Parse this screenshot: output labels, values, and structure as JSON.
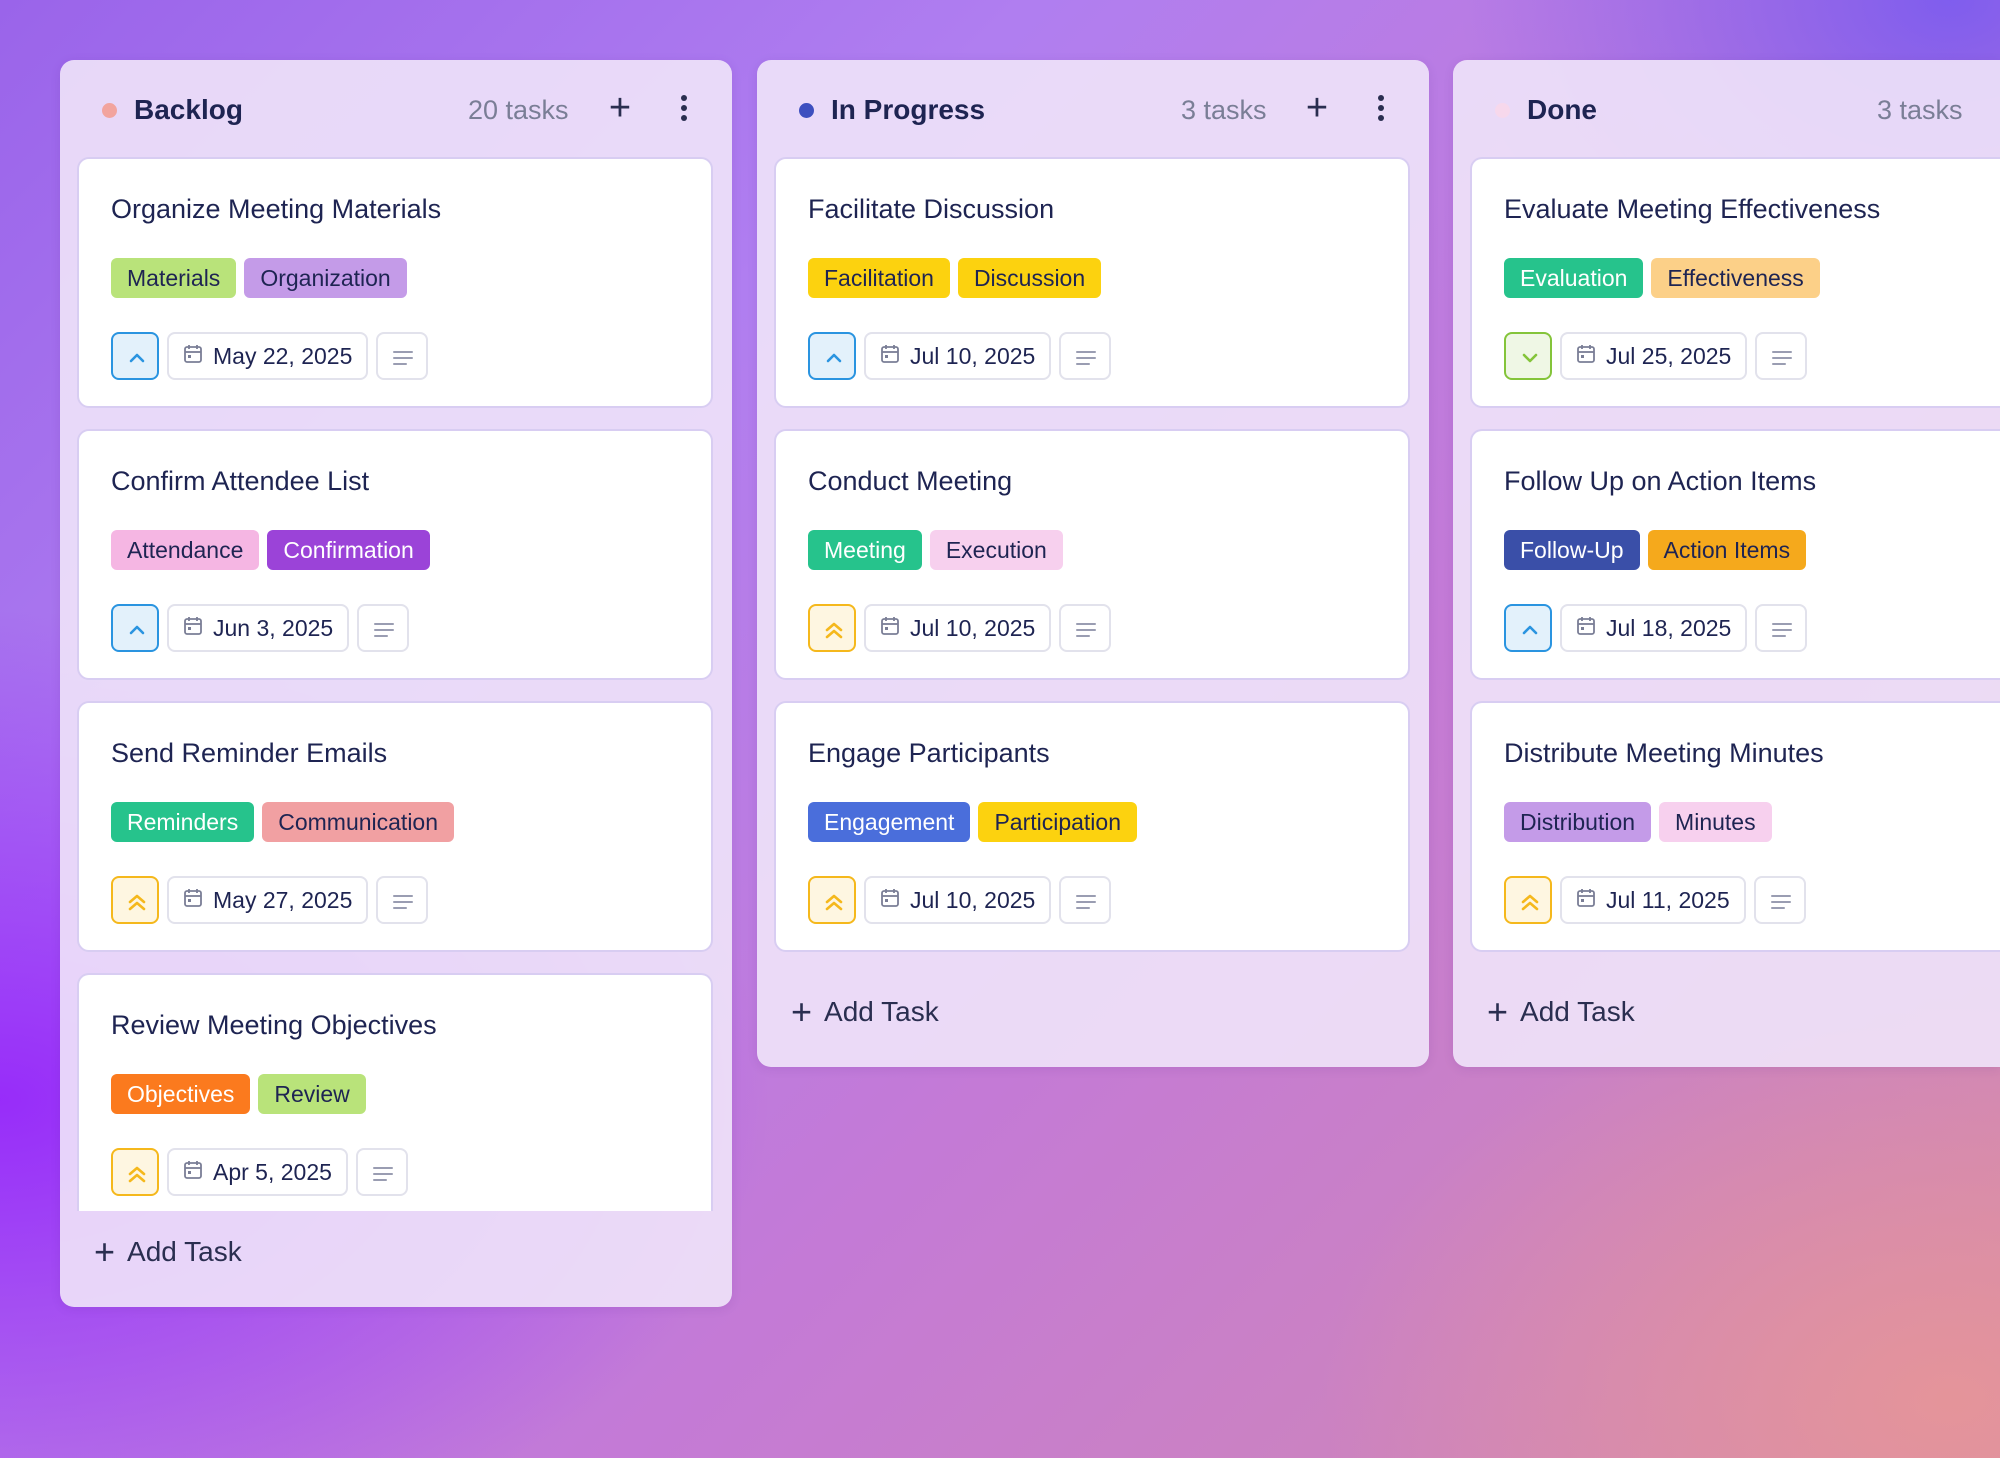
{
  "colors": {
    "priority_high": "#f5b81c",
    "priority_medium": "#2a94e0",
    "priority_low": "#84c43a"
  },
  "columns": [
    {
      "title": "Backlog",
      "count": "20 tasks",
      "dot_color": "#f2a49e",
      "add_task": "Add Task",
      "cards": [
        {
          "title": "Organize Meeting Materials",
          "priority": "medium",
          "tags": [
            {
              "label": "Materials",
              "bg": "#b9e37a",
              "fg": "#1e2452"
            },
            {
              "label": "Organization",
              "bg": "#c49be8",
              "fg": "#1e2452"
            }
          ],
          "date": "May 22, 2025"
        },
        {
          "title": "Confirm Attendee List",
          "priority": "medium",
          "tags": [
            {
              "label": "Attendance",
              "bg": "#f5b6e3",
              "fg": "#1e2452"
            },
            {
              "label": "Confirmation",
              "bg": "#9b43d8",
              "fg": "#ffffff"
            }
          ],
          "date": "Jun 3, 2025"
        },
        {
          "title": "Send Reminder Emails",
          "priority": "high",
          "tags": [
            {
              "label": "Reminders",
              "bg": "#26c38c",
              "fg": "#ffffff"
            },
            {
              "label": "Communication",
              "bg": "#f1a0a2",
              "fg": "#1e2452"
            }
          ],
          "date": "May 27, 2025"
        },
        {
          "title": "Review Meeting Objectives",
          "priority": "high",
          "tags": [
            {
              "label": "Objectives",
              "bg": "#fb7a1e",
              "fg": "#ffffff"
            },
            {
              "label": "Review",
              "bg": "#b9e37a",
              "fg": "#1e2452"
            }
          ],
          "date": "Apr 5, 2025"
        }
      ]
    },
    {
      "title": "In Progress",
      "count": "3 tasks",
      "dot_color": "#3d4fbf",
      "add_task": "Add Task",
      "cards": [
        {
          "title": "Facilitate Discussion",
          "priority": "medium",
          "tags": [
            {
              "label": "Facilitation",
              "bg": "#fcd20f",
              "fg": "#1e2452"
            },
            {
              "label": "Discussion",
              "bg": "#fcd20f",
              "fg": "#1e2452"
            }
          ],
          "date": "Jul 10, 2025"
        },
        {
          "title": "Conduct Meeting",
          "priority": "high",
          "tags": [
            {
              "label": "Meeting",
              "bg": "#26c38c",
              "fg": "#ffffff"
            },
            {
              "label": "Execution",
              "bg": "#f7d0ee",
              "fg": "#1e2452"
            }
          ],
          "date": "Jul 10, 2025"
        },
        {
          "title": "Engage Participants",
          "priority": "high",
          "tags": [
            {
              "label": "Engagement",
              "bg": "#4a6edb",
              "fg": "#ffffff"
            },
            {
              "label": "Participation",
              "bg": "#fcd20f",
              "fg": "#1e2452"
            }
          ],
          "date": "Jul 10, 2025"
        }
      ]
    },
    {
      "title": "Done",
      "count": "3 tasks",
      "dot_color": "#f7d8ec",
      "add_task": "Add Task",
      "cards": [
        {
          "title": "Evaluate Meeting Effectiveness",
          "priority": "low",
          "tags": [
            {
              "label": "Evaluation",
              "bg": "#26c38c",
              "fg": "#ffffff"
            },
            {
              "label": "Effectiveness",
              "bg": "#fcd088",
              "fg": "#1e2452"
            }
          ],
          "date": "Jul 25, 2025"
        },
        {
          "title": "Follow Up on Action Items",
          "priority": "medium",
          "tags": [
            {
              "label": "Follow-Up",
              "bg": "#3a4fa8",
              "fg": "#ffffff"
            },
            {
              "label": "Action Items",
              "bg": "#f5a91c",
              "fg": "#1e2452"
            }
          ],
          "date": "Jul 18, 2025"
        },
        {
          "title": "Distribute Meeting Minutes",
          "priority": "high",
          "tags": [
            {
              "label": "Distribution",
              "bg": "#c49be8",
              "fg": "#1e2452"
            },
            {
              "label": "Minutes",
              "bg": "#f7d0ee",
              "fg": "#1e2452"
            }
          ],
          "date": "Jul 11, 2025"
        }
      ]
    }
  ]
}
